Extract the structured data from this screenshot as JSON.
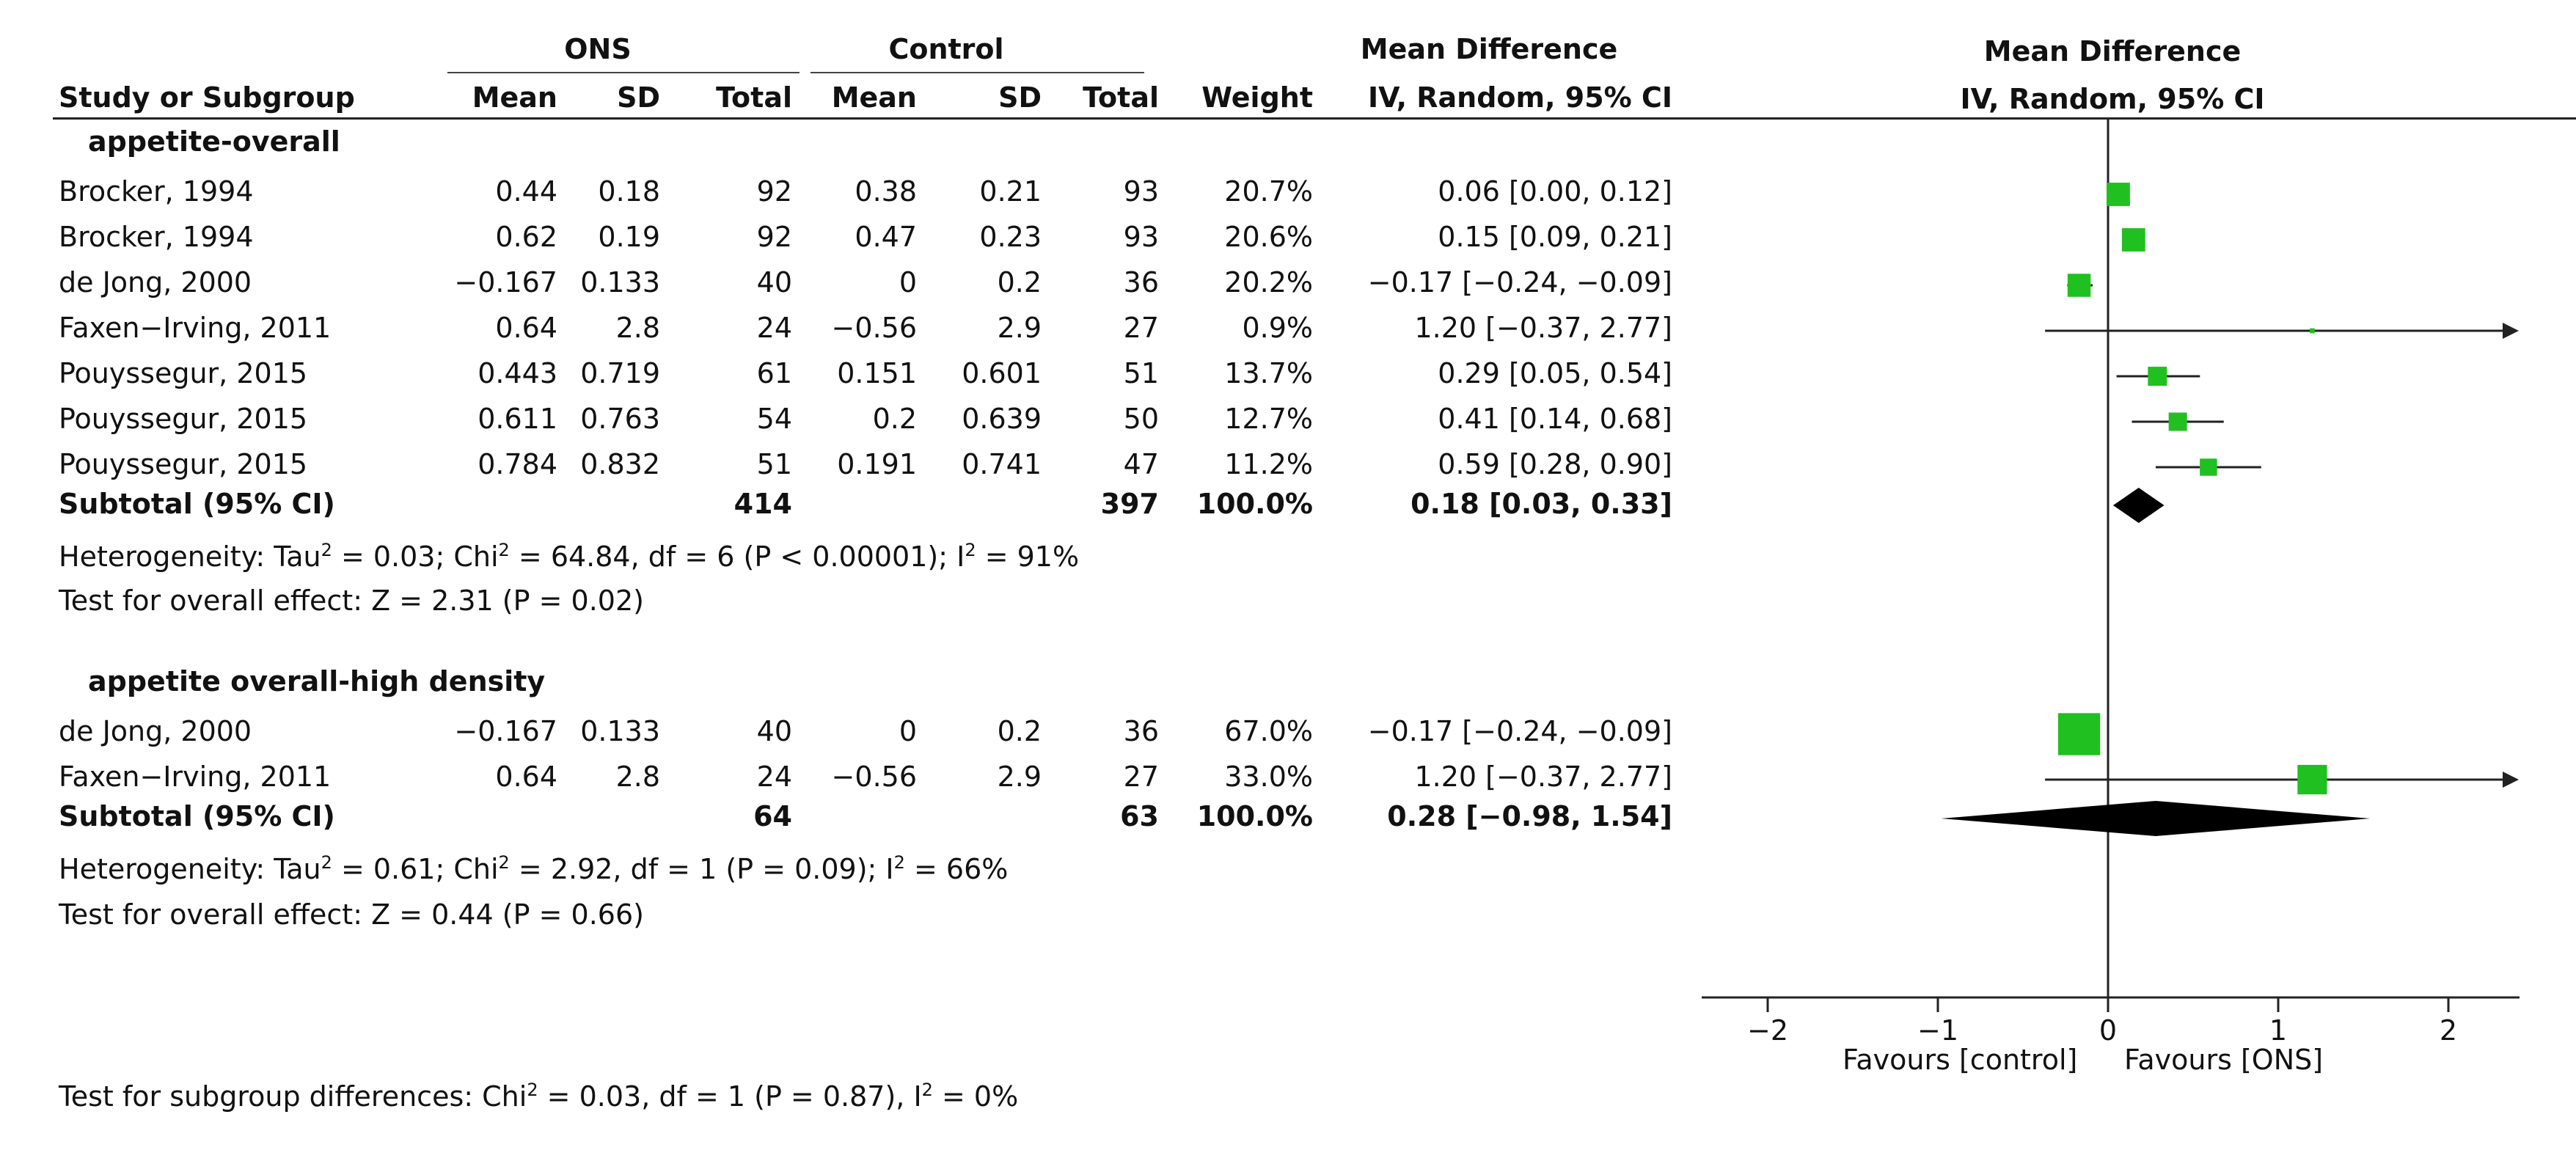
{
  "headers": {
    "study": "Study or Subgroup",
    "ons_group": "ONS",
    "control_group": "Control",
    "mean": "Mean",
    "sd": "SD",
    "total": "Total",
    "weight": "Weight",
    "md_title": "Mean Difference",
    "md_sub": "IV, Random, 95% CI"
  },
  "subgroups": [
    {
      "name": "appetite-overall",
      "studies": [
        {
          "study": "Brocker, 1994",
          "ons_mean": "0.44",
          "ons_sd": "0.18",
          "ons_total": "92",
          "ctrl_mean": "0.38",
          "ctrl_sd": "0.21",
          "ctrl_total": "93",
          "weight": "20.7%",
          "ci_text": "0.06 [0.00, 0.12]"
        },
        {
          "study": "Brocker, 1994",
          "ons_mean": "0.62",
          "ons_sd": "0.19",
          "ons_total": "92",
          "ctrl_mean": "0.47",
          "ctrl_sd": "0.23",
          "ctrl_total": "93",
          "weight": "20.6%",
          "ci_text": "0.15 [0.09, 0.21]"
        },
        {
          "study": "de Jong, 2000",
          "ons_mean": "−0.167",
          "ons_sd": "0.133",
          "ons_total": "40",
          "ctrl_mean": "0",
          "ctrl_sd": "0.2",
          "ctrl_total": "36",
          "weight": "20.2%",
          "ci_text": "−0.17 [−0.24, −0.09]"
        },
        {
          "study": "Faxen−Irving, 2011",
          "ons_mean": "0.64",
          "ons_sd": "2.8",
          "ons_total": "24",
          "ctrl_mean": "−0.56",
          "ctrl_sd": "2.9",
          "ctrl_total": "27",
          "weight": "0.9%",
          "ci_text": "1.20 [−0.37, 2.77]"
        },
        {
          "study": "Pouyssegur, 2015",
          "ons_mean": "0.443",
          "ons_sd": "0.719",
          "ons_total": "61",
          "ctrl_mean": "0.151",
          "ctrl_sd": "0.601",
          "ctrl_total": "51",
          "weight": "13.7%",
          "ci_text": "0.29 [0.05, 0.54]"
        },
        {
          "study": "Pouyssegur, 2015",
          "ons_mean": "0.611",
          "ons_sd": "0.763",
          "ons_total": "54",
          "ctrl_mean": "0.2",
          "ctrl_sd": "0.639",
          "ctrl_total": "50",
          "weight": "12.7%",
          "ci_text": "0.41 [0.14, 0.68]"
        },
        {
          "study": "Pouyssegur, 2015",
          "ons_mean": "0.784",
          "ons_sd": "0.832",
          "ons_total": "51",
          "ctrl_mean": "0.191",
          "ctrl_sd": "0.741",
          "ctrl_total": "47",
          "weight": "11.2%",
          "ci_text": "0.59 [0.28, 0.90]"
        }
      ],
      "subtotal": {
        "label": "Subtotal (95% CI)",
        "ons_total": "414",
        "ctrl_total": "397",
        "weight": "100.0%",
        "ci_text": "0.18 [0.03, 0.33]"
      },
      "heterogeneity": {
        "pre": "Heterogeneity: Tau",
        "sup1": "2",
        "mid1": " = 0.03; Chi",
        "sup2": "2",
        "mid2": " = 64.84, df = 6 (P < 0.00001); I",
        "sup3": "2",
        "end": " = 91%"
      },
      "overall_effect": "Test for overall effect: Z = 2.31 (P = 0.02)"
    },
    {
      "name": "appetite overall-high density",
      "studies": [
        {
          "study": "de Jong, 2000",
          "ons_mean": "−0.167",
          "ons_sd": "0.133",
          "ons_total": "40",
          "ctrl_mean": "0",
          "ctrl_sd": "0.2",
          "ctrl_total": "36",
          "weight": "67.0%",
          "ci_text": "−0.17 [−0.24, −0.09]"
        },
        {
          "study": "Faxen−Irving, 2011",
          "ons_mean": "0.64",
          "ons_sd": "2.8",
          "ons_total": "24",
          "ctrl_mean": "−0.56",
          "ctrl_sd": "2.9",
          "ctrl_total": "27",
          "weight": "33.0%",
          "ci_text": "1.20 [−0.37, 2.77]"
        }
      ],
      "subtotal": {
        "label": "Subtotal (95% CI)",
        "ons_total": "64",
        "ctrl_total": "63",
        "weight": "100.0%",
        "ci_text": "0.28 [−0.98, 1.54]"
      },
      "heterogeneity": {
        "pre": "Heterogeneity: Tau",
        "sup1": "2",
        "mid1": " = 0.61; Chi",
        "sup2": "2",
        "mid2": " = 2.92, df = 1 (P = 0.09); I",
        "sup3": "2",
        "end": " = 66%"
      },
      "overall_effect": "Test for overall effect: Z = 0.44 (P = 0.66)"
    }
  ],
  "subgroup_test": {
    "pre": "Test for subgroup differences: Chi",
    "sup1": "2",
    "mid": " = 0.03, df = 1 (P = 0.87), I",
    "sup2": "2",
    "end": " = 0%"
  },
  "colors": {
    "study_marker": "#1fc01f",
    "diamond": "#000000",
    "axis": "#222222"
  },
  "chart_data": {
    "type": "scatter",
    "title": "Mean Difference",
    "subtitle": "IV, Random, 95% CI",
    "xlim": [
      -2.3,
      2.4
    ],
    "xticks": [
      -2,
      -1,
      0,
      1,
      2
    ],
    "xtick_labels": [
      "−2",
      "−1",
      "0",
      "1",
      "2"
    ],
    "favours_left": "Favours [control]",
    "favours_right": "Favours [ONS]",
    "series": [
      {
        "name": "appetite-overall",
        "points": [
          {
            "study": "Brocker, 1994",
            "md": 0.06,
            "lo": 0.0,
            "hi": 0.12,
            "weight": 20.7
          },
          {
            "study": "Brocker, 1994",
            "md": 0.15,
            "lo": 0.09,
            "hi": 0.21,
            "weight": 20.6
          },
          {
            "study": "de Jong, 2000",
            "md": -0.17,
            "lo": -0.24,
            "hi": -0.09,
            "weight": 20.2
          },
          {
            "study": "Faxen-Irving, 2011",
            "md": 1.2,
            "lo": -0.37,
            "hi": 2.77,
            "weight": 0.9
          },
          {
            "study": "Pouyssegur, 2015",
            "md": 0.29,
            "lo": 0.05,
            "hi": 0.54,
            "weight": 13.7
          },
          {
            "study": "Pouyssegur, 2015",
            "md": 0.41,
            "lo": 0.14,
            "hi": 0.68,
            "weight": 12.7
          },
          {
            "study": "Pouyssegur, 2015",
            "md": 0.59,
            "lo": 0.28,
            "hi": 0.9,
            "weight": 11.2
          }
        ],
        "pooled": {
          "md": 0.18,
          "lo": 0.03,
          "hi": 0.33
        }
      },
      {
        "name": "appetite overall-high density",
        "points": [
          {
            "study": "de Jong, 2000",
            "md": -0.17,
            "lo": -0.24,
            "hi": -0.09,
            "weight": 67.0
          },
          {
            "study": "Faxen-Irving, 2011",
            "md": 1.2,
            "lo": -0.37,
            "hi": 2.77,
            "weight": 33.0
          }
        ],
        "pooled": {
          "md": 0.28,
          "lo": -0.98,
          "hi": 1.54
        }
      }
    ]
  }
}
